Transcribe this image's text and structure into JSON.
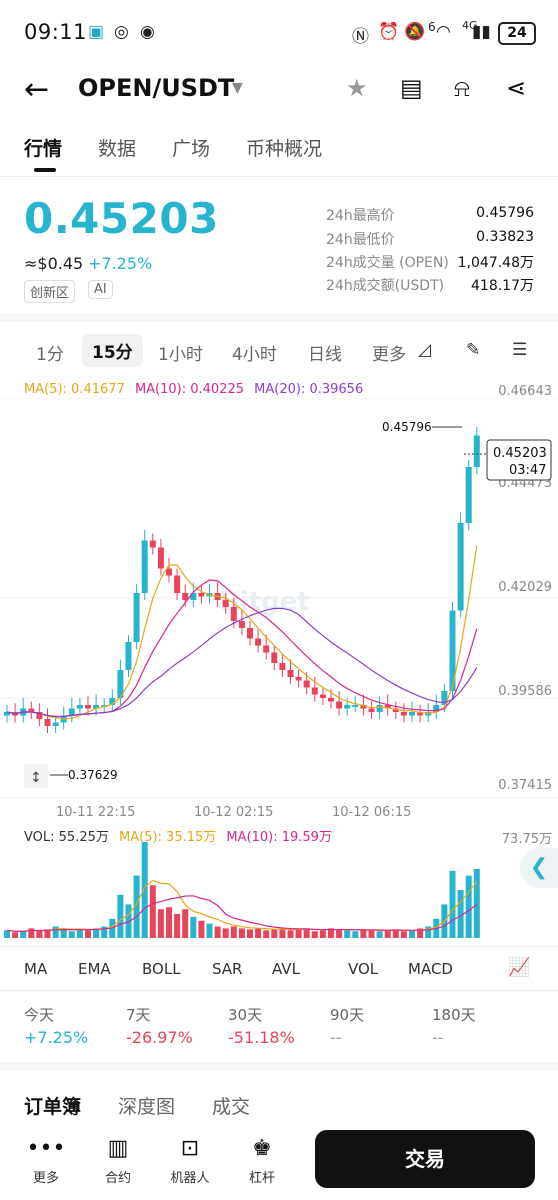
{
  "status": {
    "time": "09:11",
    "battery": "24",
    "network": "4G",
    "wifi_label": "6"
  },
  "header": {
    "pair": "OPEN/USDT"
  },
  "tabs": [
    "行情",
    "数据",
    "广场",
    "币种概况"
  ],
  "ticker": {
    "price": "0.45203",
    "usd": "≈$0.45",
    "change": "+7.25%",
    "tags": [
      "创新区",
      "AI"
    ],
    "stats": [
      {
        "label": "24h最高价",
        "value": "0.45796"
      },
      {
        "label": "24h最低价",
        "value": "0.33823"
      },
      {
        "label": "24h成交量 (OPEN)",
        "value": "1,047.48万"
      },
      {
        "label": "24h成交额(USDT)",
        "value": "418.17万"
      }
    ]
  },
  "intervals": [
    "1分",
    "15分",
    "1小时",
    "4小时",
    "日线",
    "更多"
  ],
  "ma": {
    "ma5": "MA(5): 0.41677",
    "ma10": "MA(10): 0.40225",
    "ma20": "MA(20): 0.39656"
  },
  "axis": {
    "y": [
      "0.46643",
      "0.44473",
      "0.42029",
      "0.39586",
      "0.37415"
    ],
    "vol_max": "73.75万"
  },
  "chart_marks": {
    "high": "0.45796",
    "low": "0.37629",
    "last_price": "0.45203",
    "countdown": "03:47"
  },
  "time_labels": [
    "10-11 22:15",
    "10-12 02:15",
    "10-12 06:15"
  ],
  "vol": {
    "vol": "VOL: 55.25万",
    "ma5": "MA(5): 35.15万",
    "ma10": "MA(10): 19.59万"
  },
  "indicators": [
    "MA",
    "EMA",
    "BOLL",
    "SAR",
    "AVL",
    "VOL",
    "MACD"
  ],
  "performance": [
    {
      "label": "今天",
      "value": "+7.25%",
      "color": "#27b4cf"
    },
    {
      "label": "7天",
      "value": "-26.97%",
      "color": "#e8455a"
    },
    {
      "label": "30天",
      "value": "-51.18%",
      "color": "#e8455a"
    },
    {
      "label": "90天",
      "value": "--",
      "color": "#999999"
    },
    {
      "label": "180天",
      "value": "--",
      "color": "#999999"
    }
  ],
  "orderbook_tabs": [
    "订单簿",
    "深度图",
    "成交"
  ],
  "bottom_nav": [
    "更多",
    "合约",
    "机器人",
    "杠杆"
  ],
  "trade_label": "交易",
  "watermark": "Bitget",
  "colors": {
    "up": "#27b4cf",
    "down": "#e8455a",
    "ma5": "#e6a817",
    "ma10": "#d6288f",
    "ma20": "#8a3fd1"
  }
}
